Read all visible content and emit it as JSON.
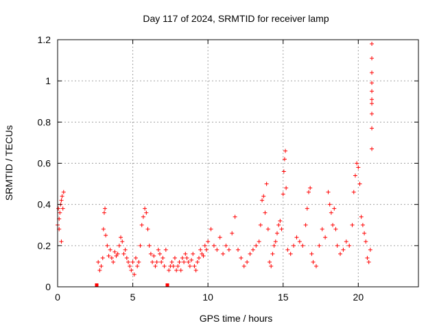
{
  "chart_data": {
    "type": "scatter",
    "title": "Day 117 of 2024, SRMTID for receiver lamp",
    "xlabel": "GPS time / hours",
    "ylabel": "SRMTID / TECUs",
    "xlim": [
      0,
      24
    ],
    "ylim": [
      0,
      1.2
    ],
    "x_ticks": [
      0,
      5,
      10,
      15,
      20
    ],
    "x_tick_labels": [
      "0",
      "5",
      "10",
      "15",
      "20"
    ],
    "y_ticks": [
      0,
      0.2,
      0.4,
      0.6,
      0.8,
      1.0,
      1.2
    ],
    "y_tick_labels": [
      "0",
      "0.2",
      "0.4",
      "0.6",
      "0.8",
      "1",
      "1.2"
    ],
    "grid": true,
    "marker": "+",
    "series": [
      {
        "name": "SRMTID",
        "color": "#ff0000",
        "x": [
          0.0,
          0.05,
          0.1,
          0.15,
          0.2,
          0.25,
          0.3,
          0.35,
          0.4,
          0.1,
          0.25,
          2.7,
          2.8,
          2.9,
          3.0,
          3.05,
          3.1,
          3.15,
          3.2,
          3.3,
          3.4,
          3.5,
          3.6,
          3.7,
          3.8,
          3.9,
          4.0,
          4.1,
          4.2,
          4.3,
          4.4,
          4.5,
          4.6,
          4.7,
          4.8,
          4.9,
          5.0,
          5.1,
          5.2,
          5.3,
          5.4,
          5.5,
          5.6,
          5.7,
          5.8,
          5.9,
          6.0,
          6.1,
          6.2,
          6.3,
          6.4,
          6.5,
          6.6,
          6.7,
          6.8,
          6.9,
          7.0,
          7.1,
          7.2,
          7.4,
          7.5,
          7.6,
          7.7,
          7.8,
          7.9,
          8.0,
          8.1,
          8.2,
          8.3,
          8.4,
          8.5,
          8.6,
          8.7,
          8.8,
          8.9,
          9.0,
          9.1,
          9.2,
          9.3,
          9.4,
          9.5,
          9.6,
          9.7,
          9.8,
          9.9,
          10.0,
          10.2,
          10.4,
          10.6,
          10.8,
          11.0,
          11.2,
          11.4,
          11.6,
          11.8,
          12.0,
          12.2,
          12.4,
          12.6,
          12.8,
          13.0,
          13.2,
          13.4,
          13.5,
          13.6,
          13.7,
          13.8,
          13.9,
          14.0,
          14.1,
          14.2,
          14.3,
          14.4,
          14.5,
          14.6,
          14.7,
          14.8,
          14.9,
          15.0,
          15.05,
          15.1,
          15.15,
          15.2,
          15.3,
          15.5,
          15.7,
          15.9,
          16.1,
          16.3,
          16.5,
          16.6,
          16.7,
          16.8,
          16.9,
          17.0,
          17.2,
          17.4,
          17.6,
          17.8,
          18.0,
          18.1,
          18.2,
          18.3,
          18.4,
          18.5,
          18.6,
          18.8,
          19.0,
          19.2,
          19.4,
          19.6,
          19.7,
          19.8,
          19.9,
          20.0,
          20.1,
          20.2,
          20.3,
          20.4,
          20.5,
          20.6,
          20.7,
          20.8,
          20.9,
          20.9,
          20.9,
          20.9,
          20.9,
          20.9,
          20.9,
          20.9,
          20.9,
          20.9
        ],
        "y": [
          0.3,
          0.38,
          0.33,
          0.36,
          0.4,
          0.42,
          0.44,
          0.38,
          0.46,
          0.28,
          0.22,
          0.12,
          0.08,
          0.1,
          0.14,
          0.28,
          0.36,
          0.38,
          0.25,
          0.2,
          0.15,
          0.18,
          0.14,
          0.12,
          0.17,
          0.15,
          0.16,
          0.2,
          0.24,
          0.22,
          0.16,
          0.18,
          0.14,
          0.12,
          0.1,
          0.08,
          0.12,
          0.06,
          0.14,
          0.1,
          0.12,
          0.2,
          0.3,
          0.34,
          0.38,
          0.36,
          0.28,
          0.2,
          0.16,
          0.12,
          0.15,
          0.1,
          0.12,
          0.18,
          0.16,
          0.12,
          0.14,
          0.1,
          0.18,
          0.08,
          0.1,
          0.12,
          0.1,
          0.14,
          0.08,
          0.1,
          0.12,
          0.08,
          0.14,
          0.12,
          0.16,
          0.14,
          0.12,
          0.1,
          0.13,
          0.16,
          0.1,
          0.08,
          0.12,
          0.14,
          0.18,
          0.16,
          0.15,
          0.2,
          0.18,
          0.22,
          0.28,
          0.2,
          0.18,
          0.24,
          0.16,
          0.2,
          0.18,
          0.26,
          0.34,
          0.18,
          0.14,
          0.1,
          0.12,
          0.16,
          0.18,
          0.2,
          0.22,
          0.3,
          0.42,
          0.44,
          0.36,
          0.5,
          0.28,
          0.12,
          0.1,
          0.16,
          0.2,
          0.22,
          0.26,
          0.3,
          0.32,
          0.28,
          0.45,
          0.56,
          0.62,
          0.66,
          0.48,
          0.18,
          0.16,
          0.2,
          0.24,
          0.22,
          0.2,
          0.3,
          0.38,
          0.46,
          0.48,
          0.16,
          0.12,
          0.1,
          0.2,
          0.28,
          0.24,
          0.46,
          0.4,
          0.36,
          0.3,
          0.38,
          0.28,
          0.2,
          0.16,
          0.18,
          0.22,
          0.2,
          0.3,
          0.46,
          0.54,
          0.6,
          0.58,
          0.5,
          0.34,
          0.3,
          0.26,
          0.22,
          0.14,
          0.12,
          0.18,
          1.18,
          1.11,
          1.04,
          0.99,
          0.95,
          0.91,
          0.89,
          0.84,
          0.77,
          0.67
        ]
      }
    ],
    "zero_markers_x": [
      2.6,
      7.3
    ]
  }
}
